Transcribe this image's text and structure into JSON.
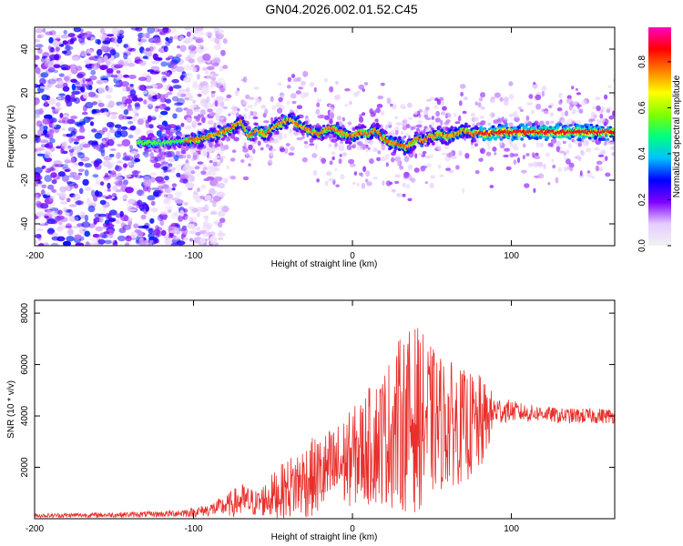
{
  "title": "GN04.2026.002.01.52.C45",
  "chart_data": [
    {
      "type": "heatmap",
      "title": "GN04.2026.002.01.52.C45",
      "xlabel": "Height of straight line (km)",
      "ylabel": "Frequency (Hz)",
      "xlim": [
        -200,
        165
      ],
      "ylim": [
        -50,
        50
      ],
      "xticks": [
        -200,
        -100,
        0,
        100
      ],
      "yticks": [
        -40,
        -20,
        0,
        20,
        40
      ],
      "colorbar": {
        "label": "Normalized spectral amplitude",
        "range": [
          0,
          0.95
        ],
        "ticks": [
          0.0,
          0.2,
          0.4,
          0.6,
          0.8
        ],
        "colors": [
          "#f2f2f2",
          "#e6ccff",
          "#8000ff",
          "#0000ff",
          "#00c0ff",
          "#00ff80",
          "#80ff00",
          "#ffff00",
          "#ff8000",
          "#ff0000",
          "#ff00c0"
        ]
      },
      "ridge": {
        "x": [
          -135,
          -120,
          -105,
          -95,
          -85,
          -75,
          -70,
          -65,
          -60,
          -55,
          -50,
          -45,
          -40,
          -35,
          -30,
          -25,
          -20,
          -15,
          -10,
          -5,
          0,
          5,
          10,
          15,
          20,
          25,
          30,
          35,
          40,
          45,
          50,
          55,
          60,
          65,
          70,
          75,
          80,
          85,
          90,
          100,
          110,
          120,
          130,
          140,
          150,
          160,
          165
        ],
        "y": [
          -3,
          -3,
          -2,
          -1,
          1,
          4,
          7,
          0,
          3,
          1,
          4,
          6,
          8,
          6,
          4,
          2,
          1,
          4,
          3,
          1,
          0,
          2,
          1,
          3,
          -1,
          -3,
          -4,
          -5,
          -1,
          -2,
          0,
          1,
          0,
          1,
          3,
          1,
          2,
          1,
          2,
          2,
          2,
          2,
          2,
          2,
          2,
          2,
          2
        ]
      },
      "noise_region_x": [
        -200,
        -95
      ]
    },
    {
      "type": "line",
      "xlabel": "Height of straight line (km)",
      "ylabel": "SNR (10 * v/v)",
      "xlim": [
        -200,
        165
      ],
      "ylim": [
        0,
        8500
      ],
      "xticks": [
        -200,
        -100,
        0,
        100
      ],
      "yticks": [
        2000,
        4000,
        6000,
        8000
      ],
      "series": [
        {
          "name": "SNR",
          "color": "#e8302c",
          "envelope": {
            "x": [
              -200,
              -150,
              -120,
              -100,
              -90,
              -80,
              -70,
              -60,
              -50,
              -40,
              -30,
              -20,
              -10,
              0,
              10,
              20,
              30,
              40,
              50,
              60,
              70,
              80,
              90,
              100,
              110,
              120,
              130,
              140,
              150,
              160,
              165
            ],
            "mean": [
              120,
              150,
              180,
              250,
              350,
              500,
              700,
              600,
              900,
              1200,
              1500,
              1700,
              2000,
              2400,
              2800,
              3200,
              3700,
              3900,
              3800,
              3700,
              3600,
              3600,
              4200,
              4200,
              4100,
              4100,
              4000,
              4000,
              4000,
              4000,
              4000
            ],
            "spread": [
              80,
              100,
              120,
              180,
              250,
              400,
              700,
              500,
              900,
              1200,
              1500,
              1600,
              1700,
              1900,
              2300,
              2700,
              3400,
              3700,
              2900,
              2500,
              2200,
              2000,
              600,
              400,
              350,
              300,
              300,
              300,
              300,
              300,
              300
            ]
          }
        }
      ]
    }
  ]
}
